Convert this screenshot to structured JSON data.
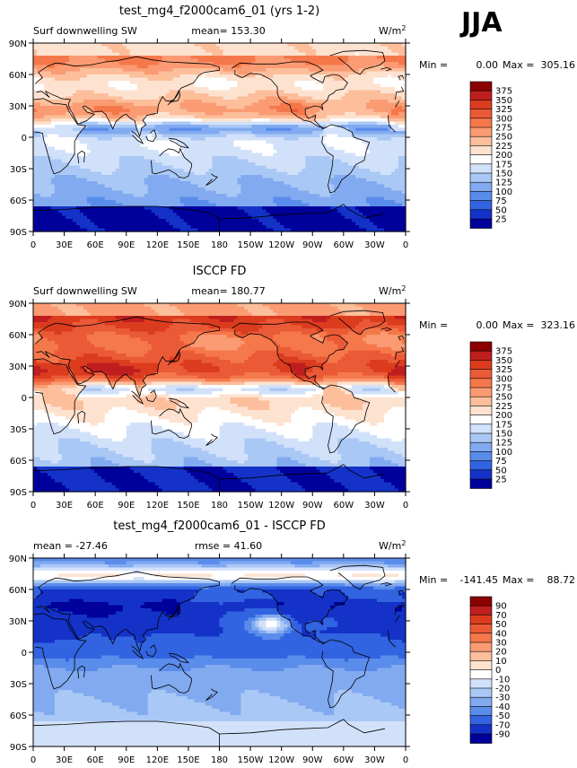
{
  "season": "JJA",
  "chart_data": [
    {
      "type": "heatmap",
      "title": "test_mg4_f2000cam6_01 (yrs 1-2)",
      "left_label": "Surf downwelling SW",
      "center_label": "mean=  153.30",
      "units_label": "W/m",
      "units_sup": "2",
      "stats": {
        "min_label": "Min =",
        "min": "0.00",
        "max_label": "Max =",
        "max": "305.16"
      },
      "x_ticks": [
        "0",
        "30E",
        "60E",
        "90E",
        "120E",
        "150E",
        "180",
        "150W",
        "120W",
        "90W",
        "60W",
        "30W",
        "0"
      ],
      "y_ticks": [
        "90N",
        "60N",
        "30N",
        "0",
        "30S",
        "60S",
        "90S"
      ],
      "colorbar_labels": [
        "375",
        "350",
        "325",
        "300",
        "275",
        "250",
        "225",
        "200",
        "175",
        "150",
        "125",
        "100",
        "75",
        "50",
        "25"
      ],
      "colorbar_colors": [
        "#8b0000",
        "#be1e1e",
        "#dc3c1e",
        "#eb5a37",
        "#f5784b",
        "#fa9b73",
        "#fcbe9b",
        "#fde2d0",
        "#ffffff",
        "#d2e1fa",
        "#aac8f5",
        "#82aaf0",
        "#5a8ceb",
        "#3264e1",
        "#1432c8",
        "#00009b"
      ],
      "field": "model"
    },
    {
      "type": "heatmap",
      "title": "ISCCP FD",
      "left_label": "Surf downwelling SW",
      "center_label": "mean=  180.77",
      "units_label": "W/m",
      "units_sup": "2",
      "stats": {
        "min_label": "Min =",
        "min": "0.00",
        "max_label": "Max =",
        "max": "323.16"
      },
      "x_ticks": [
        "0",
        "30E",
        "60E",
        "90E",
        "120E",
        "150E",
        "180",
        "150W",
        "120W",
        "90W",
        "60W",
        "30W",
        "0"
      ],
      "y_ticks": [
        "90N",
        "60N",
        "30N",
        "0",
        "30S",
        "60S",
        "90S"
      ],
      "colorbar_labels": [
        "375",
        "350",
        "325",
        "300",
        "275",
        "250",
        "225",
        "200",
        "175",
        "150",
        "125",
        "100",
        "75",
        "50",
        "25"
      ],
      "colorbar_colors": [
        "#8b0000",
        "#be1e1e",
        "#dc3c1e",
        "#eb5a37",
        "#f5784b",
        "#fa9b73",
        "#fcbe9b",
        "#fde2d0",
        "#ffffff",
        "#d2e1fa",
        "#aac8f5",
        "#82aaf0",
        "#5a8ceb",
        "#3264e1",
        "#1432c8",
        "#00009b"
      ],
      "field": "obs"
    },
    {
      "type": "heatmap",
      "title": "test_mg4_f2000cam6_01 - ISCCP FD",
      "left_label": "mean = -27.46",
      "center_label": "rmse =   41.60",
      "units_label": "W/m",
      "units_sup": "2",
      "stats": {
        "min_label": "Min = ",
        "min": "-141.45",
        "max_label": "Max =",
        "max": "88.72"
      },
      "x_ticks": [
        "0",
        "30E",
        "60E",
        "90E",
        "120E",
        "150E",
        "180",
        "150W",
        "120W",
        "90W",
        "60W",
        "30W",
        "0"
      ],
      "y_ticks": [
        "90N",
        "60N",
        "30N",
        "0",
        "30S",
        "60S",
        "90S"
      ],
      "colorbar_labels": [
        "90",
        "70",
        "50",
        "40",
        "30",
        "20",
        "10",
        "0",
        "-10",
        "-20",
        "-30",
        "-40",
        "-50",
        "-70",
        "-90"
      ],
      "colorbar_colors": [
        "#8b0000",
        "#be1e1e",
        "#dc3c1e",
        "#eb5a37",
        "#f5784b",
        "#fa9b73",
        "#fcbe9b",
        "#fde2d0",
        "#ffffff",
        "#d2e1fa",
        "#aac8f5",
        "#82aaf0",
        "#5a8ceb",
        "#3264e1",
        "#1432c8",
        "#00009b"
      ],
      "field": "diff"
    }
  ]
}
